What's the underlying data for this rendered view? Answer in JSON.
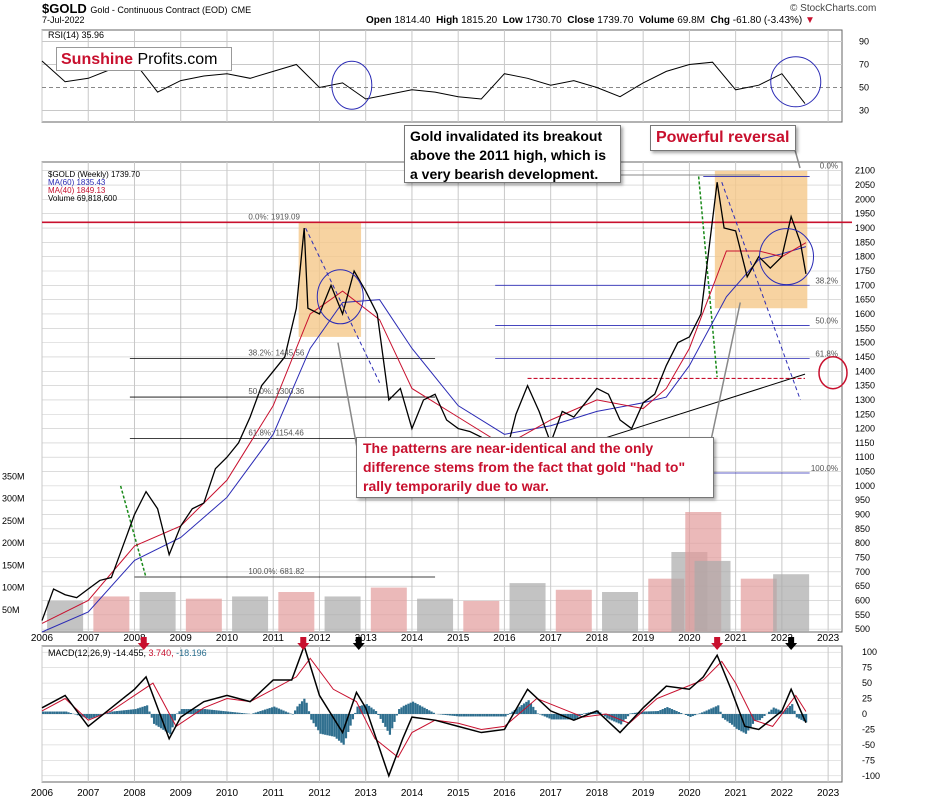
{
  "header": {
    "symbol": "$GOLD",
    "description": "Gold - Continuous Contract (EOD)",
    "exchange": "CME",
    "date": "7-Jul-2022",
    "open_label": "Open",
    "open": "1814.40",
    "high_label": "High",
    "high": "1815.20",
    "low_label": "Low",
    "low": "1730.70",
    "close_label": "Close",
    "close": "1739.70",
    "volume_label": "Volume",
    "volume": "69.8M",
    "chg_label": "Chg",
    "chg": "-61.80 (-3.43%)",
    "chg_arrow": "▼",
    "brand": "© StockCharts.com"
  },
  "logo": {
    "part1": "Sunshine",
    "part2": "Profits.com"
  },
  "annotations": {
    "black_note": "Gold invalidated its breakout above the 2011 high, which is a very bearish development.",
    "red_note_1": "Powerful reversal",
    "red_note_2": "The patterns are near-identical and the only difference stems from the fact that gold \"had to\" rally temporarily due to war."
  },
  "colors": {
    "bg": "#ffffff",
    "grid": "#c8c8c8",
    "price": "#000000",
    "down": "#c8102e",
    "ma60": "#2b2bb5",
    "ma40": "#c8102e",
    "red": "#c8102e",
    "blue": "#2b2bb5",
    "highlight": "#f5c88a",
    "histogram": "#2f6f8f",
    "volume_up": "#aaaaaa",
    "volume_down": "#e29b9b",
    "rsi_fill": "#3d6b3d",
    "green": "#1a8a1a"
  },
  "chart_data": [
    {
      "type": "line",
      "panel": "rsi",
      "legend": "RSI(14) 35.96",
      "ylim": [
        20,
        100
      ],
      "y_ticks": [
        30,
        50,
        70,
        90
      ],
      "x": [
        2006.0,
        2006.5,
        2007.0,
        2007.5,
        2008.0,
        2008.5,
        2009.0,
        2009.5,
        2010.0,
        2010.5,
        2011.0,
        2011.5,
        2012.0,
        2012.5,
        2013.0,
        2013.5,
        2014.0,
        2014.5,
        2015.0,
        2015.5,
        2016.0,
        2016.5,
        2017.0,
        2017.5,
        2018.0,
        2018.5,
        2019.0,
        2019.5,
        2020.0,
        2020.5,
        2021.0,
        2021.5,
        2022.0,
        2022.5
      ],
      "values": [
        73,
        55,
        58,
        66,
        72,
        46,
        56,
        60,
        62,
        58,
        64,
        70,
        50,
        54,
        40,
        44,
        48,
        46,
        42,
        40,
        62,
        58,
        52,
        56,
        50,
        42,
        54,
        64,
        70,
        72,
        48,
        52,
        62,
        36
      ]
    },
    {
      "type": "line",
      "panel": "price",
      "legend": [
        "$GOLD (Weekly) 1739.70",
        "MA(60) 1835.43",
        "MA(40) 1849.13",
        "Volume 69,818,600"
      ],
      "x_ticks": [
        "2006",
        "2007",
        "2008",
        "2009",
        "2010",
        "2011",
        "2012",
        "2013",
        "2014",
        "2015",
        "2016",
        "2017",
        "2018",
        "2019",
        "2020",
        "2021",
        "2022",
        "2023"
      ],
      "y_ticks": [
        500,
        550,
        600,
        650,
        700,
        750,
        800,
        850,
        900,
        950,
        1000,
        1050,
        1100,
        1150,
        1200,
        1250,
        1300,
        1350,
        1400,
        1450,
        1500,
        1550,
        1600,
        1650,
        1700,
        1750,
        1800,
        1850,
        1900,
        1950,
        2000,
        2050,
        2100
      ],
      "ylim": [
        490,
        2120
      ],
      "x": [
        2006.0,
        2006.25,
        2006.5,
        2006.75,
        2007.0,
        2007.25,
        2007.5,
        2007.75,
        2008.0,
        2008.25,
        2008.5,
        2008.75,
        2009.0,
        2009.25,
        2009.5,
        2009.75,
        2010.0,
        2010.25,
        2010.5,
        2010.75,
        2011.0,
        2011.25,
        2011.5,
        2011.67,
        2011.75,
        2012.0,
        2012.25,
        2012.5,
        2012.75,
        2013.0,
        2013.25,
        2013.5,
        2013.75,
        2014.0,
        2014.25,
        2014.5,
        2014.75,
        2015.0,
        2015.25,
        2015.5,
        2015.95,
        2016.25,
        2016.5,
        2016.75,
        2017.0,
        2017.25,
        2017.5,
        2017.75,
        2018.0,
        2018.25,
        2018.5,
        2018.75,
        2019.0,
        2019.25,
        2019.5,
        2019.75,
        2020.0,
        2020.25,
        2020.6,
        2020.75,
        2021.0,
        2021.25,
        2021.5,
        2021.75,
        2022.0,
        2022.2,
        2022.4,
        2022.52
      ],
      "values": [
        530,
        640,
        620,
        610,
        640,
        670,
        680,
        790,
        900,
        980,
        920,
        760,
        860,
        920,
        940,
        1060,
        1100,
        1150,
        1240,
        1350,
        1400,
        1450,
        1620,
        1900,
        1620,
        1600,
        1700,
        1600,
        1750,
        1680,
        1600,
        1300,
        1340,
        1200,
        1300,
        1320,
        1230,
        1200,
        1190,
        1170,
        1060,
        1250,
        1350,
        1260,
        1150,
        1260,
        1240,
        1290,
        1340,
        1320,
        1230,
        1200,
        1290,
        1320,
        1420,
        1500,
        1520,
        1600,
        2060,
        1900,
        1890,
        1730,
        1800,
        1760,
        1800,
        1940,
        1850,
        1740
      ]
    },
    {
      "type": "line",
      "panel": "price-ma60",
      "name": "MA(60) 1835.43",
      "x": [
        2006.0,
        2007.0,
        2008.0,
        2009.0,
        2010.0,
        2011.0,
        2011.8,
        2012.5,
        2013.3,
        2014.0,
        2015.0,
        2016.0,
        2017.0,
        2018.0,
        2019.0,
        2019.5,
        2020.0,
        2020.8,
        2021.5,
        2022.0,
        2022.52
      ],
      "values": [
        490,
        560,
        740,
        820,
        960,
        1180,
        1480,
        1640,
        1650,
        1480,
        1280,
        1180,
        1210,
        1260,
        1290,
        1310,
        1420,
        1660,
        1790,
        1810,
        1835
      ]
    },
    {
      "type": "line",
      "panel": "price-ma40",
      "name": "MA(40) 1849.13",
      "x": [
        2006.0,
        2007.0,
        2008.0,
        2009.0,
        2010.0,
        2011.0,
        2011.8,
        2012.5,
        2013.3,
        2014.0,
        2015.0,
        2016.0,
        2017.0,
        2018.0,
        2019.0,
        2019.5,
        2020.0,
        2020.8,
        2021.5,
        2022.0,
        2022.52
      ],
      "values": [
        520,
        600,
        790,
        860,
        1020,
        1280,
        1600,
        1680,
        1580,
        1340,
        1240,
        1140,
        1230,
        1300,
        1270,
        1340,
        1480,
        1820,
        1820,
        1800,
        1849
      ]
    },
    {
      "type": "bar",
      "panel": "volume",
      "y_ticks": [
        "50M",
        "100M",
        "150M",
        "200M",
        "250M",
        "300M",
        "350M"
      ],
      "ylim": [
        0,
        360
      ],
      "x": [
        2006.5,
        2007.5,
        2008.5,
        2009.5,
        2010.5,
        2011.5,
        2012.5,
        2013.5,
        2014.5,
        2015.5,
        2016.5,
        2017.5,
        2018.5,
        2019.5,
        2020.0,
        2020.3,
        2020.5,
        2021.5,
        2022.2
      ],
      "values": [
        70,
        80,
        90,
        75,
        80,
        90,
        80,
        100,
        75,
        70,
        110,
        95,
        90,
        120,
        180,
        270,
        160,
        120,
        130
      ]
    },
    {
      "type": "line",
      "panel": "macd",
      "legend": [
        "MACD(12,26,9) -14.455",
        "3.740",
        "-18.196"
      ],
      "ylim": [
        -110,
        110
      ],
      "y_ticks": [
        -100,
        -75,
        -50,
        -25,
        0,
        25,
        50,
        75,
        100
      ],
      "x": [
        2006.0,
        2006.5,
        2007.0,
        2007.5,
        2008.0,
        2008.25,
        2008.75,
        2009.0,
        2009.5,
        2010.0,
        2010.5,
        2011.0,
        2011.4,
        2011.67,
        2012.0,
        2012.5,
        2012.8,
        2013.0,
        2013.5,
        2013.8,
        2014.0,
        2014.5,
        2015.0,
        2015.5,
        2016.0,
        2016.5,
        2017.0,
        2017.5,
        2018.0,
        2018.5,
        2019.0,
        2019.5,
        2020.0,
        2020.3,
        2020.6,
        2020.9,
        2021.2,
        2021.5,
        2022.0,
        2022.2,
        2022.52
      ],
      "values": [
        10,
        30,
        -20,
        10,
        40,
        60,
        -40,
        -5,
        20,
        30,
        20,
        55,
        55,
        110,
        30,
        -30,
        35,
        10,
        -100,
        -40,
        -5,
        -10,
        -20,
        -30,
        -25,
        40,
        5,
        -10,
        5,
        -30,
        10,
        45,
        40,
        60,
        95,
        40,
        -20,
        -25,
        5,
        40,
        -14
      ]
    },
    {
      "type": "line",
      "panel": "macd-signal",
      "x": [
        2006.0,
        2006.5,
        2007.0,
        2007.5,
        2008.0,
        2008.4,
        2008.9,
        2009.5,
        2010.0,
        2010.5,
        2011.0,
        2011.5,
        2011.8,
        2012.3,
        2012.8,
        2013.2,
        2013.7,
        2014.0,
        2014.5,
        2015.0,
        2015.5,
        2016.0,
        2016.7,
        2017.2,
        2017.7,
        2018.2,
        2018.7,
        2019.3,
        2019.8,
        2020.3,
        2020.7,
        2021.0,
        2021.4,
        2021.8,
        2022.3,
        2022.52
      ],
      "values": [
        5,
        25,
        -10,
        5,
        30,
        50,
        -20,
        10,
        25,
        20,
        40,
        60,
        90,
        40,
        20,
        -40,
        -70,
        -30,
        -10,
        -15,
        -25,
        -20,
        25,
        10,
        -5,
        0,
        -15,
        25,
        40,
        55,
        85,
        50,
        -10,
        -20,
        30,
        4
      ]
    }
  ]
}
